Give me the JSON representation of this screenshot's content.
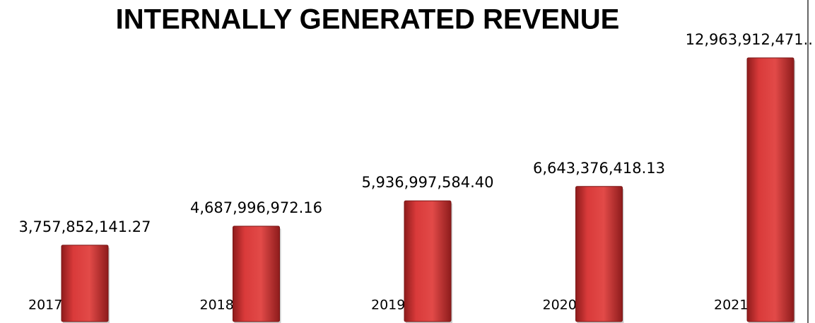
{
  "chart_data": {
    "type": "bar",
    "title": "INTERNALLY GENERATED REVENUE",
    "categories": [
      "2017",
      "2018",
      "2019",
      "2020",
      "2021"
    ],
    "values": [
      3757852141.27,
      4687996972.16,
      5936997584.4,
      6643376418.13,
      12963912471
    ],
    "value_labels": [
      "3,757,852,141.27",
      "4,687,996,972.16",
      "5,936,997,584.40",
      "6,643,376,418.13",
      "12,963,912,471.."
    ],
    "color": "#d93a3a",
    "ylim": [
      0,
      14000000000
    ]
  }
}
